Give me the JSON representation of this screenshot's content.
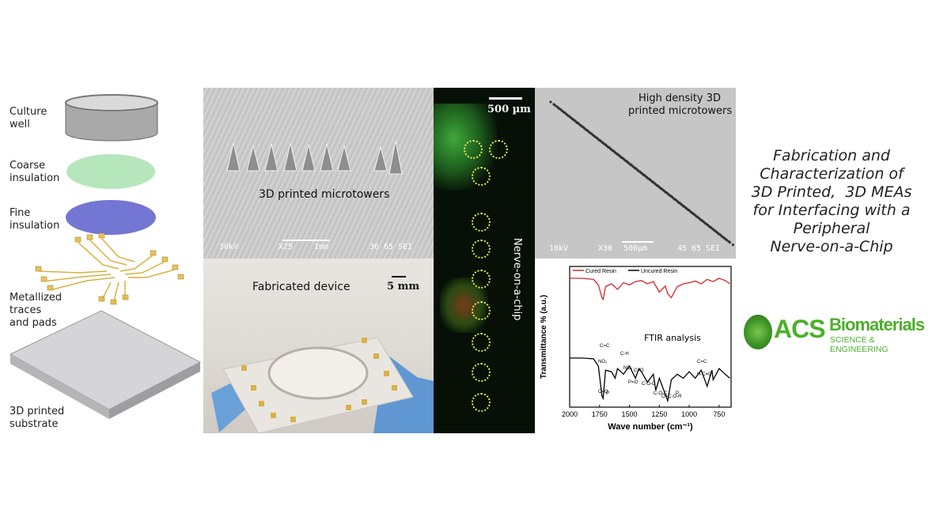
{
  "layers": {
    "culture_well": "Culture\nwell",
    "coarse": "Coarse\ninsulation",
    "fine": "Fine\ninsulation",
    "metal": "Metallized\ntraces\nand pads",
    "substrate": "3D printed\nsubstrate"
  },
  "sem1": {
    "caption": "3D printed microtowers",
    "meta_left": "30kV",
    "meta_mid": "X25",
    "scale": "1mm",
    "meta_right": "36 65 SEI"
  },
  "photo": {
    "caption": "Fabricated device",
    "scale": "5 mm"
  },
  "fluor": {
    "scale": "500 µm",
    "caption": "Nerve-on-a-chip"
  },
  "sem2": {
    "caption": "High density 3D\nprinted microtowers",
    "meta_left": "10kV",
    "meta_mid": "X30",
    "scale": "500µm",
    "meta_right": "45 65 SEI"
  },
  "chart_data": {
    "type": "line",
    "title": "FTIR analysis",
    "xlabel": "Wave number (cm⁻¹)",
    "ylabel": "Transmittance % (a.u.)",
    "xlim": [
      2000,
      650
    ],
    "xticks": [
      "2000",
      "1750",
      "1500",
      "1250",
      "1000",
      "750"
    ],
    "legend": [
      "Cured Resin",
      "Uncured Resin"
    ],
    "colors": [
      "#d62728",
      "#000000"
    ],
    "series": [
      {
        "name": "Cured Resin",
        "x": [
          2000,
          1900,
          1800,
          1760,
          1730,
          1720,
          1700,
          1650,
          1600,
          1550,
          1500,
          1450,
          1400,
          1350,
          1300,
          1250,
          1200,
          1180,
          1150,
          1100,
          1050,
          1000,
          950,
          900,
          850,
          800,
          750,
          700,
          660
        ],
        "y": [
          0.9,
          0.9,
          0.88,
          0.78,
          0.55,
          0.52,
          0.75,
          0.8,
          0.7,
          0.82,
          0.78,
          0.84,
          0.86,
          0.8,
          0.84,
          0.65,
          0.76,
          0.62,
          0.55,
          0.75,
          0.8,
          0.82,
          0.85,
          0.8,
          0.88,
          0.84,
          0.9,
          0.86,
          0.8
        ]
      },
      {
        "name": "Uncured Resin",
        "x": [
          2000,
          1900,
          1800,
          1760,
          1730,
          1720,
          1700,
          1650,
          1620,
          1600,
          1550,
          1500,
          1450,
          1420,
          1400,
          1350,
          1300,
          1280,
          1250,
          1200,
          1180,
          1150,
          1100,
          1050,
          1000,
          950,
          900,
          850,
          810,
          800,
          750,
          700,
          660
        ],
        "y": [
          0.55,
          0.55,
          0.54,
          0.45,
          0.08,
          0.05,
          0.4,
          0.38,
          0.3,
          0.42,
          0.35,
          0.45,
          0.3,
          0.42,
          0.38,
          0.25,
          0.35,
          0.15,
          0.3,
          0.1,
          0.02,
          0.28,
          0.35,
          0.3,
          0.38,
          0.3,
          0.4,
          0.2,
          0.4,
          0.28,
          0.42,
          0.35,
          0.3
        ]
      }
    ],
    "annotations": [
      "C=C",
      "C-H",
      "NO₂",
      "NO₂",
      "C=O",
      "P=O",
      "C-O-C",
      "C=O",
      "P",
      "C-O-C",
      "O=C-O-R",
      "P",
      "C=C",
      "H-C=C"
    ]
  },
  "title": "Fabrication and\nCharacterization of\n3D Printed,  3D MEAs\nfor Interfacing with a\nPeripheral\nNerve-on-a-Chip",
  "logo": {
    "acs": "ACS",
    "bio": "Biomaterials",
    "sub": "SCIENCE & ENGINEERING",
    "color": "#4caf2b"
  }
}
